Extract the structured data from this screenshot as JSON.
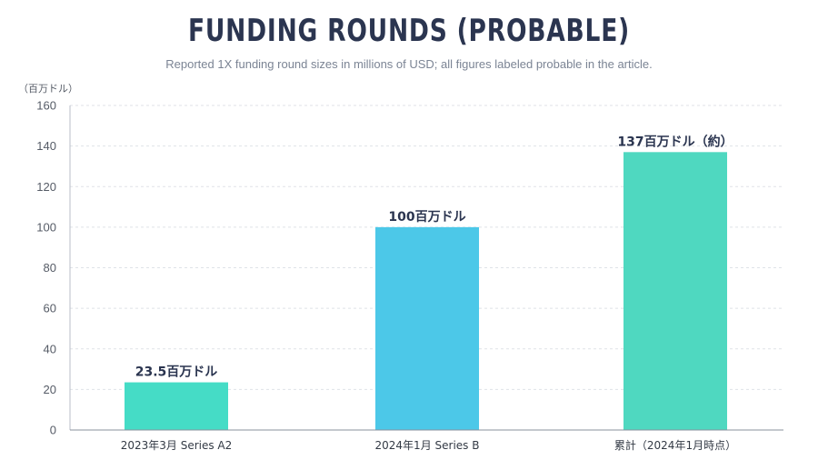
{
  "chart_data": {
    "type": "bar",
    "title": "FUNDING ROUNDS (PROBABLE)",
    "subtitle": "Reported 1X funding round sizes in millions of USD; all figures labeled probable in the article.",
    "ylabel": "（百万ドル）",
    "ylim": [
      0,
      160
    ],
    "yticks": [
      0,
      20,
      40,
      60,
      80,
      100,
      120,
      140,
      160
    ],
    "grid": true,
    "categories": [
      "2023年3月 Series A2",
      "2024年1月 Series B",
      "累計（2024年1月時点）"
    ],
    "values": [
      23.5,
      100,
      137
    ],
    "data_labels": [
      "23.5百万ドル",
      "100百万ドル",
      "137百万ドル（約）"
    ],
    "colors": [
      "#45dcc6",
      "#4cc8e8",
      "#4fd8c0"
    ]
  }
}
